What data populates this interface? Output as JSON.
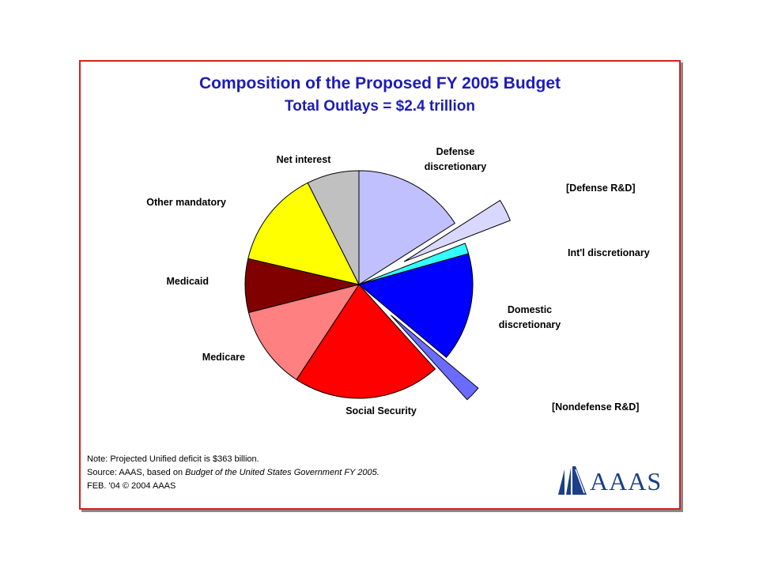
{
  "chart_data": {
    "type": "pie",
    "title": "Composition of the Proposed FY 2005 Budget",
    "subtitle": "Total Outlays = $2.4 trillion",
    "slices": [
      {
        "label": "Defense discretionary",
        "label_lines": [
          "Defense",
          "discretionary"
        ],
        "value": 15.7,
        "color": "#c0c0ff",
        "exploded": false
      },
      {
        "label": "[Defense R&D]",
        "label_lines": [
          "[Defense R&D]"
        ],
        "value": 3.1,
        "color": "#d8d8ff",
        "exploded": true
      },
      {
        "label": "Int'l discretionary",
        "label_lines": [
          "Int'l discretionary"
        ],
        "value": 1.5,
        "color": "#33ffff",
        "exploded": false
      },
      {
        "label": "Domestic discretionary",
        "label_lines": [
          "Domestic",
          "discretionary"
        ],
        "value": 15.2,
        "color": "#0000ff",
        "exploded": false
      },
      {
        "label": "[Nondefense R&D]",
        "label_lines": [
          "[Nondefense R&D]"
        ],
        "value": 2.2,
        "color": "#6b6bff",
        "exploded": true
      },
      {
        "label": "Social Security",
        "label_lines": [
          "Social Security"
        ],
        "value": 20.6,
        "color": "#ff0000",
        "exploded": false
      },
      {
        "label": "Medicare",
        "label_lines": [
          "Medicare"
        ],
        "value": 11.6,
        "color": "#ff8080",
        "exploded": false
      },
      {
        "label": "Medicaid",
        "label_lines": [
          "Medicaid"
        ],
        "value": 7.5,
        "color": "#800000",
        "exploded": false
      },
      {
        "label": "Other mandatory",
        "label_lines": [
          "Other mandatory"
        ],
        "value": 13.7,
        "color": "#ffff00",
        "exploded": false
      },
      {
        "label": "Net interest",
        "label_lines": [
          "Net interest"
        ],
        "value": 7.3,
        "color": "#c0c0c0",
        "exploded": false
      }
    ],
    "legend": "none"
  },
  "notes": {
    "line1": "Note: Projected Unified deficit is $363 billion.",
    "line2_prefix": "Source: AAAS, based on ",
    "line2_italic": "Budget of the United States Government FY  2005.",
    "line3": "FEB. '04 © 2004 AAAS"
  },
  "logo": {
    "text": "AAAS",
    "color": "#1c3f86"
  }
}
